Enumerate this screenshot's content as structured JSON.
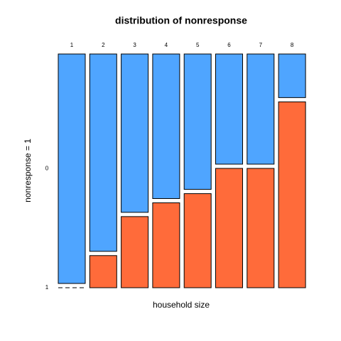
{
  "chart_data": {
    "type": "spineplot",
    "title": "distribution of nonresponse",
    "x_label": "household size",
    "y_label": "nonresponse = 1",
    "categories": [
      "1",
      "2",
      "3",
      "4",
      "5",
      "6",
      "7",
      "8"
    ],
    "series": [
      {
        "name": "0",
        "color": "#4fa5ff",
        "values": [
          1,
          0.86,
          0.69,
          0.63,
          0.59,
          0.48,
          0.48,
          0.19
        ]
      },
      {
        "name": "1",
        "color": "#ff6b3a",
        "values": [
          0,
          0.14,
          0.31,
          0.37,
          0.41,
          0.52,
          0.52,
          0.81
        ]
      }
    ]
  }
}
